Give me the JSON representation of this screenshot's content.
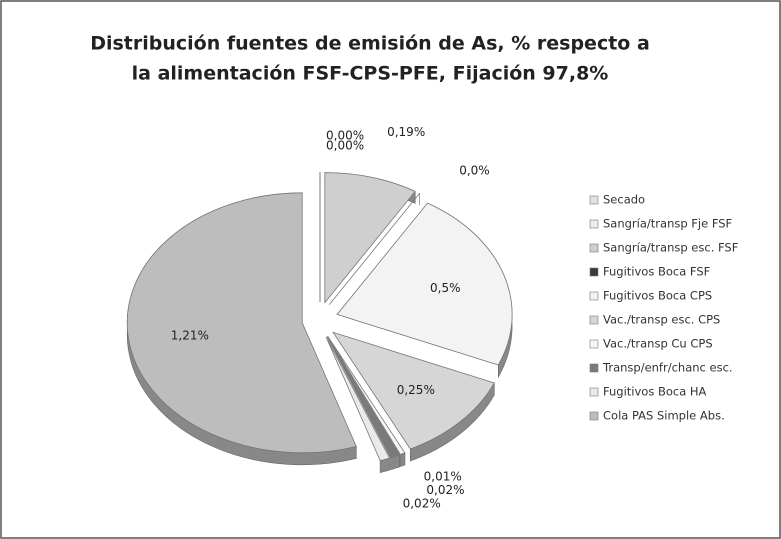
{
  "chart_data": {
    "type": "pie",
    "title": [
      "Distribución fuentes de emisión de As, % respecto a",
      "la alimentación FSF-CPS-PFE, Fijación 97,8%"
    ],
    "categories": [
      "Secado",
      "Sangría/transp Fje FSF",
      "Sangría/transp esc. FSF",
      "Fugitivos Boca FSF",
      "Fugitivos Boca CPS",
      "Vac./transp esc. CPS",
      "Vac./transp Cu CPS",
      "Transp/enfr/chanc esc.",
      "Fugitivos Boca HA",
      "Cola PAS Simple Abs."
    ],
    "values": [
      0,
      0,
      0.19,
      0,
      0.5,
      0.25,
      0.01,
      0.02,
      0.02,
      1.21
    ],
    "value_labels": [
      "0,00%",
      "0,00%",
      "0,19%",
      "0,0%",
      "0,5%",
      "0,25%",
      "0,01%",
      "0,02%",
      "0,02%",
      "1,21%"
    ],
    "colors": [
      "#e2e2e2",
      "#ececec",
      "#cfcfcf",
      "#3a3a3a",
      "#f3f3f3",
      "#d6d6d6",
      "#f6f6f6",
      "#7a7a7a",
      "#eaeaea",
      "#bdbdbd"
    ],
    "legend": "right"
  }
}
